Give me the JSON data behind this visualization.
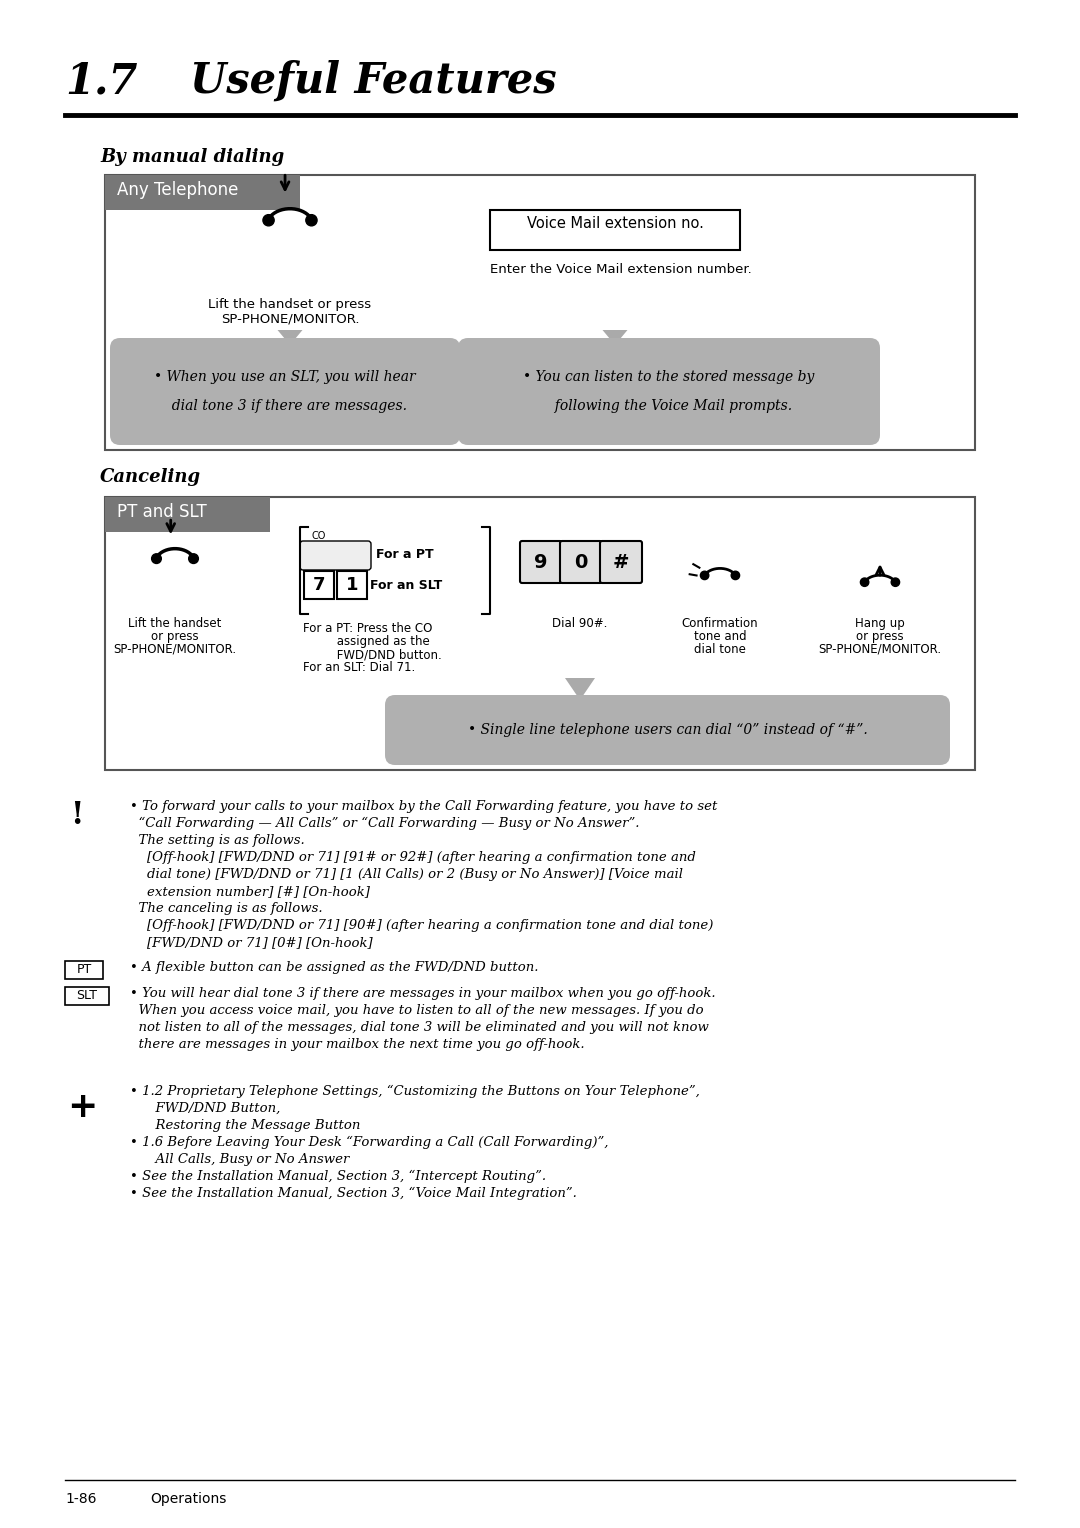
{
  "title_number": "1.7",
  "title_text": "Useful Features",
  "section1_heading": "By manual dialing",
  "section1_box_label": "Any Telephone",
  "section1_icon1_caption_line1": "Lift the handset or press",
  "section1_icon1_caption_line2": "SP-PHONE/MONITOR.",
  "section1_vmail_box": "Voice Mail extension no.",
  "section1_icon2_caption": "Enter the Voice Mail extension number.",
  "section1_note1_line1": "• When you use an SLT, you will hear",
  "section1_note1_line2": "  dial tone 3 if there are messages.",
  "section1_note2_line1": "• You can listen to the stored message by",
  "section1_note2_line2": "  following the Voice Mail prompts.",
  "section2_heading": "Canceling",
  "section2_box_label": "PT and SLT",
  "section2_col1_cap1": "Lift the handset",
  "section2_col1_cap2": "or press",
  "section2_col1_cap3": "SP-PHONE/MONITOR.",
  "section2_col2_cap1": "For a PT: Press the CO",
  "section2_col2_cap2": "         assigned as the",
  "section2_col2_cap3": "         FWD/DND button.",
  "section2_col2_cap4": "For an SLT: Dial 71.",
  "section2_dial_caption": "Dial 90#.",
  "section2_conf_cap1": "Confirmation",
  "section2_conf_cap2": "tone and",
  "section2_conf_cap3": "dial tone",
  "section2_hangup_cap1": "Hang up",
  "section2_hangup_cap2": "or press",
  "section2_hangup_cap3": "SP-PHONE/MONITOR.",
  "section2_note": "• Single line telephone users can dial “0” instead of “#”.",
  "co_label": "CO",
  "for_pt_label": "For a PT",
  "for_slt_label": "For an SLT",
  "btn_7": "7",
  "btn_1": "1",
  "btn_9": "9",
  "btn_0": "0",
  "btn_hash": "#",
  "exclamation_notes": [
    "• To forward your calls to your mailbox by the Call Forwarding feature, you have to set",
    "  “Call Forwarding — All Calls” or “Call Forwarding — Busy or No Answer”.",
    "  The setting is as follows.",
    "    [Off-hook] [FWD/DND or 71] [91# or 92#] (after hearing a confirmation tone and",
    "    dial tone) [FWD/DND or 71] [1 (All Calls) or 2 (Busy or No Answer)] [Voice mail",
    "    extension number] [#] [On-hook]",
    "  The canceling is as follows.",
    "    [Off-hook] [FWD/DND or 71] [90#] (after hearing a confirmation tone and dial tone)",
    "    [FWD/DND or 71] [0#] [On-hook]"
  ],
  "pt_label": "PT",
  "pt_note": "• A flexible button can be assigned as the FWD/DND button.",
  "slt_label": "SLT",
  "slt_note_lines": [
    "• You will hear dial tone 3 if there are messages in your mailbox when you go off-hook.",
    "  When you access voice mail, you have to listen to all of the new messages. If you do",
    "  not listen to all of the messages, dial tone 3 will be eliminated and you will not know",
    "  there are messages in your mailbox the next time you go off-hook."
  ],
  "plus_notes": [
    "• 1.2 Proprietary Telephone Settings, “Customizing the Buttons on Your Telephone”,",
    "      FWD/DND Button,",
    "      Restoring the Message Button",
    "• 1.6 Before Leaving Your Desk “Forwarding a Call (Call Forwarding)”,",
    "      All Calls, Busy or No Answer",
    "• See the Installation Manual, Section 3, “Intercept Routing”.",
    "• See the Installation Manual, Section 3, “Voice Mail Integration”."
  ],
  "footer_left": "1-86",
  "footer_right": "Operations",
  "bg_color": "#ffffff",
  "box_border_color": "#666666",
  "box_label_bg": "#777777",
  "box_label_color": "#ffffff",
  "bubble_color": "#b0b0b0",
  "arrow_color": "#999999",
  "black": "#000000"
}
